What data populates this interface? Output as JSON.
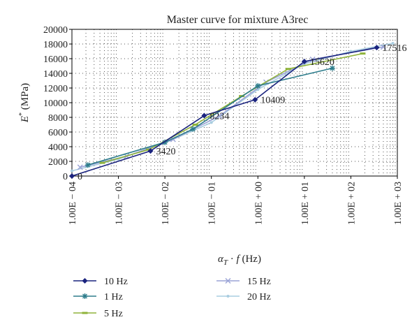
{
  "chart_data": {
    "type": "line",
    "title": "Master curve for mixture A3rec",
    "xlabel": "αT · f (Hz)",
    "ylabel": "E* (MPa)",
    "x_scale": "log",
    "xlim": [
      0.0001,
      1000
    ],
    "ylim": [
      0,
      20000
    ],
    "x_tick_labels": [
      "1.00E − 04",
      "1.00E − 03",
      "1.00E − 02",
      "1.00E − 01",
      "1.00E + 00",
      "1.00E + 01",
      "1.00E + 02",
      "1.00E + 03"
    ],
    "y_ticks": [
      0,
      2000,
      4000,
      6000,
      8000,
      10000,
      12000,
      14000,
      16000,
      18000,
      20000
    ],
    "grid": "dotted",
    "legend_position": "bottom",
    "series": [
      {
        "name": "10 Hz",
        "color": "#1a237e",
        "marker": "diamond",
        "x": [
          0.0001,
          0.0049,
          0.07,
          0.87,
          10,
          360
        ],
        "y": [
          0,
          3420,
          8234,
          10409,
          15620,
          17516
        ]
      },
      {
        "name": "1 Hz",
        "color": "#2e7d8c",
        "marker": "star",
        "x": [
          0.00022,
          0.01,
          0.04,
          1.0,
          40
        ],
        "y": [
          1500,
          4600,
          6400,
          12300,
          14700
        ]
      },
      {
        "name": "5 Hz",
        "color": "#8fb33a",
        "marker": "dash",
        "x": [
          0.00045,
          0.0045,
          0.045,
          0.45,
          4.5,
          180
        ],
        "y": [
          1800,
          3600,
          7000,
          10900,
          14600,
          16700
        ]
      },
      {
        "name": "15 Hz",
        "color": "#9aa3d6",
        "marker": "x",
        "x": [
          0.00015,
          0.0015,
          0.015,
          0.15,
          1.5,
          15,
          500
        ],
        "y": [
          1200,
          2700,
          5000,
          8200,
          12800,
          15900,
          17600
        ]
      },
      {
        "name": "20 Hz",
        "color": "#a9cde0",
        "marker": "dot",
        "x": [
          0.0001,
          0.001,
          0.01,
          0.1,
          1,
          10,
          100,
          800
        ],
        "y": [
          700,
          2300,
          4500,
          7300,
          11800,
          15300,
          17000,
          18100
        ]
      }
    ],
    "data_labels": [
      {
        "text": "0",
        "x": 0.0001,
        "y": 0
      },
      {
        "text": "3420",
        "x": 0.0049,
        "y": 3420
      },
      {
        "text": "8234",
        "x": 0.07,
        "y": 8234
      },
      {
        "text": "10409",
        "x": 0.87,
        "y": 10409
      },
      {
        "text": "15620",
        "x": 10,
        "y": 15620
      },
      {
        "text": "17516",
        "x": 360,
        "y": 17516
      }
    ]
  }
}
